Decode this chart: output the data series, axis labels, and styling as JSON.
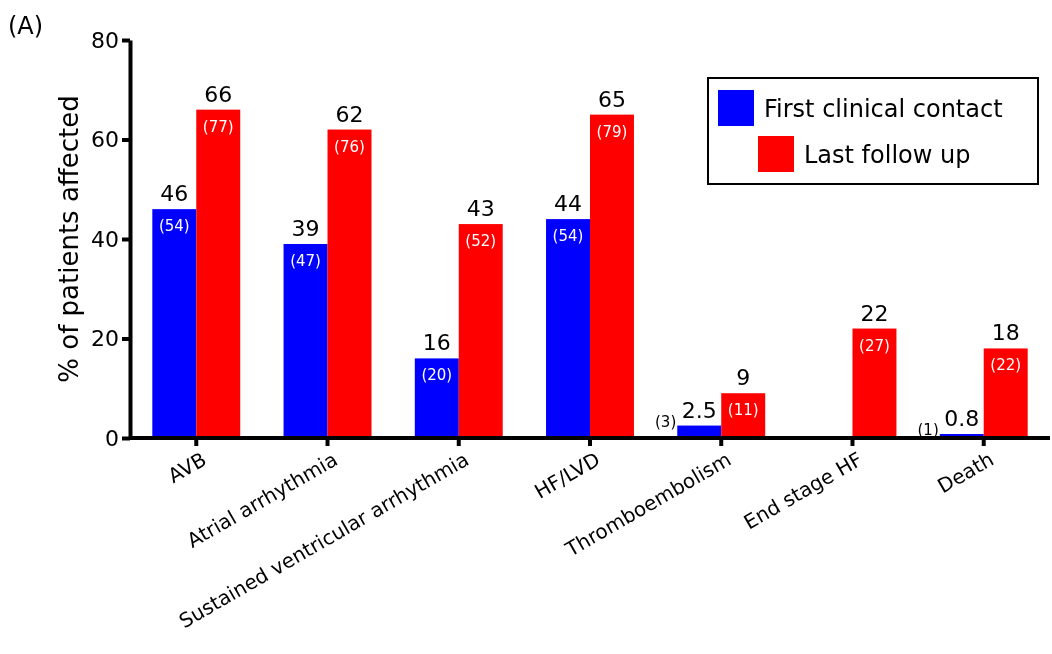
{
  "chart_data": {
    "type": "bar",
    "title": "(A)",
    "ylabel": "% of patients affected",
    "categories": [
      "AVB",
      "Atrial arrhythmia",
      "Sustained ventricular arrhythmia",
      "HF/LVD",
      "Thromboembolism",
      "End stage HF",
      "Death"
    ],
    "series": [
      {
        "name": "First clinical contact",
        "color": "#0000ff",
        "values": [
          46,
          39,
          16,
          44,
          2.5,
          null,
          0.8
        ]
      },
      {
        "name": "Last follow up",
        "color": "#ff0000",
        "values": [
          66,
          62,
          43,
          65,
          9,
          22,
          18
        ]
      }
    ],
    "data_labels": true,
    "annotations": [
      {
        "text": "(54)",
        "x": "AVB",
        "y": 46
      },
      {
        "text": "(77)",
        "x": "AVB",
        "y": 66
      },
      {
        "text": "(47)",
        "x": "Atrial arrhythmia",
        "y": 39
      },
      {
        "text": "(76)",
        "x": "Atrial arrhythmia",
        "y": 62
      },
      {
        "text": "(20)",
        "x": "Sustained ventricular arrhythmia",
        "y": 16
      },
      {
        "text": "(52)",
        "x": "Sustained ventricular arrhythmia",
        "y": 43
      },
      {
        "text": "(54)",
        "x": "HF/LVD",
        "y": 44
      },
      {
        "text": "(79)",
        "x": "HF/LVD",
        "y": 65
      },
      {
        "text": "(3)",
        "x": "Thromboembolism",
        "y": 2.5
      },
      {
        "text": "(11)",
        "x": "Thromboembolism",
        "y": 9
      },
      {
        "text": "(27)",
        "x": "End stage HF",
        "y": 22
      },
      {
        "text": "(1)",
        "x": "Death",
        "y": 0.8
      },
      {
        "text": "(22)",
        "x": "Death",
        "y": 18
      }
    ],
    "ylim": [
      0,
      80
    ],
    "yticks": [
      0,
      20,
      40,
      60,
      80
    ],
    "grid": false,
    "legend": "top right"
  }
}
